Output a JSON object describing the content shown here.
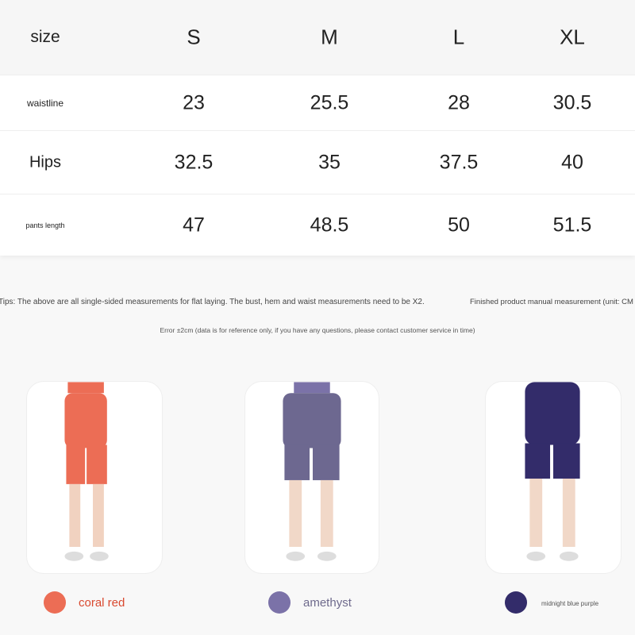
{
  "table": {
    "header": {
      "label": "size",
      "sizes": [
        "S",
        "M",
        "L",
        "XL"
      ]
    },
    "rows": [
      {
        "label": "waistline",
        "values": [
          "23",
          "25.5",
          "28",
          "30.5"
        ]
      },
      {
        "label": "Hips",
        "values": [
          "32.5",
          "35",
          "37.5",
          "40"
        ]
      },
      {
        "label": "pants length",
        "values": [
          "47",
          "48.5",
          "50",
          "51.5"
        ]
      }
    ]
  },
  "notes": {
    "tips": "Tips: The above are all single-sided measurements for flat laying. The bust, hem and waist measurements need to be X2.",
    "unit": "Finished product manual measurement (unit: CM",
    "error": "Error ±2cm (data is for reference only, if you have any questions, please contact customer service in time)"
  },
  "colors": [
    {
      "name": "coral red",
      "hex": "#ec6d55",
      "text_color": "#d9492f"
    },
    {
      "name": "amethyst",
      "hex": "#7b72a8",
      "text_color": "#6e6a8c"
    },
    {
      "name": "midnight blue purple",
      "hex": "#332c6a",
      "text_color": "#555"
    }
  ]
}
